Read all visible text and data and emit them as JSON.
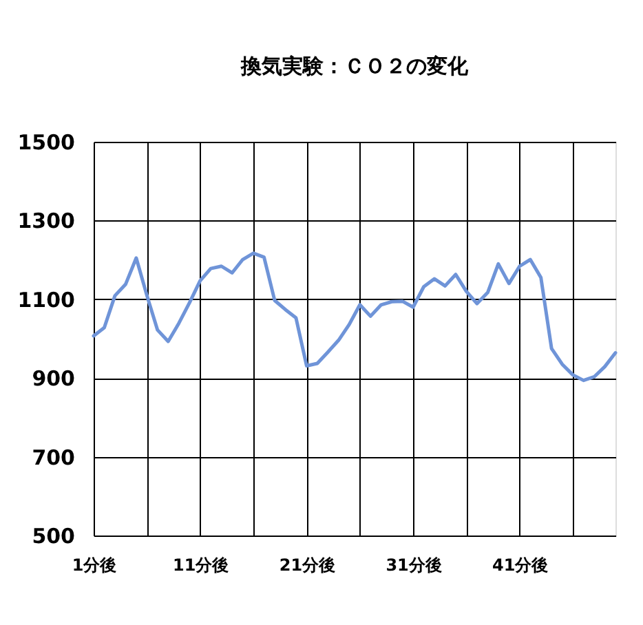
{
  "chart_data": {
    "type": "line",
    "title": "換気実験：ＣＯ２の変化",
    "categories": [
      "1分後",
      null,
      null,
      null,
      null,
      null,
      null,
      null,
      null,
      null,
      "11分後",
      null,
      null,
      null,
      null,
      null,
      null,
      null,
      null,
      null,
      "21分後",
      null,
      null,
      null,
      null,
      null,
      null,
      null,
      null,
      null,
      "31分後",
      null,
      null,
      null,
      null,
      null,
      null,
      null,
      null,
      null,
      "41分後",
      null,
      null,
      null,
      null,
      null,
      null,
      null,
      null,
      null
    ],
    "series": [
      {
        "color": "#6f94d8",
        "values": [
          1007,
          1028,
          1109,
          1138,
          1205,
          1110,
          1022,
          993,
          1039,
          1091,
          1147,
          1178,
          1184,
          1167,
          1201,
          1217,
          1207,
          1097,
          1074,
          1053,
          931,
          937,
          966,
          996,
          1036,
          1086,
          1057,
          1086,
          1094,
          1095,
          1080,
          1132,
          1152,
          1134,
          1163,
          1120,
          1089,
          1117,
          1190,
          1140,
          1184,
          1201,
          1155,
          975,
          935,
          908,
          894,
          903,
          929,
          964
        ]
      }
    ],
    "ylim": [
      500,
      1500
    ],
    "yticks": [
      500,
      700,
      900,
      1100,
      1300,
      1500
    ],
    "grid": true,
    "legend": false,
    "marker": "none",
    "line_style": "solid"
  }
}
